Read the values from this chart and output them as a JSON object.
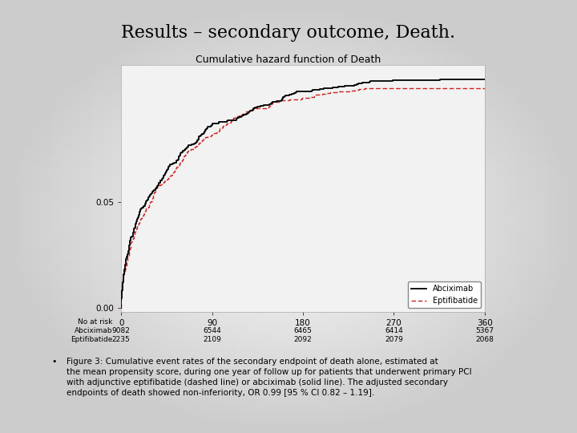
{
  "title": "Results – secondary outcome, Death.",
  "subtitle": "Cumulative hazard function of Death",
  "title_fontsize": 16,
  "subtitle_fontsize": 9,
  "background_color": "#e8e8e8",
  "plot_bg_color": "#f0f0f0",
  "xlim": [
    0,
    360
  ],
  "ylim": [
    -0.002,
    0.115
  ],
  "xticks": [
    0,
    90,
    180,
    270,
    360
  ],
  "yticks": [
    0.0,
    0.05
  ],
  "legend_labels": [
    "Abciximab",
    "Eptifibatide"
  ],
  "legend_color_abc": "#000000",
  "legend_color_epi": "#cc2222",
  "at_risk_label": "No at risk",
  "at_risk_abciximab_label": "Abciximab",
  "at_risk_eptifibatide_label": "Eptifibatide",
  "at_risk_abciximab": [
    "9082",
    "6544",
    "6465",
    "6414",
    "5367"
  ],
  "at_risk_eptifibatide": [
    "2235",
    "2109",
    "2092",
    "2079",
    "2068"
  ],
  "at_risk_times": [
    0,
    90,
    180,
    270,
    360
  ],
  "caption_bullet": "•",
  "caption": "Figure 3: Cumulative event rates of the secondary endpoint of death alone, estimated at\nthe mean propensity score, during one year of follow up for patients that underwent primary PCI\nwith adjunctive eptifibatide (dashed line) or abciximab (solid line). The adjusted secondary\nendpoints of death showed non-inferiority, OR 0.99 [95 % CI 0.82 – 1.19].",
  "caption_fontsize": 7.5,
  "final_abc": 0.108,
  "final_epi": 0.104,
  "seed_abc": 42,
  "seed_epi": 17
}
